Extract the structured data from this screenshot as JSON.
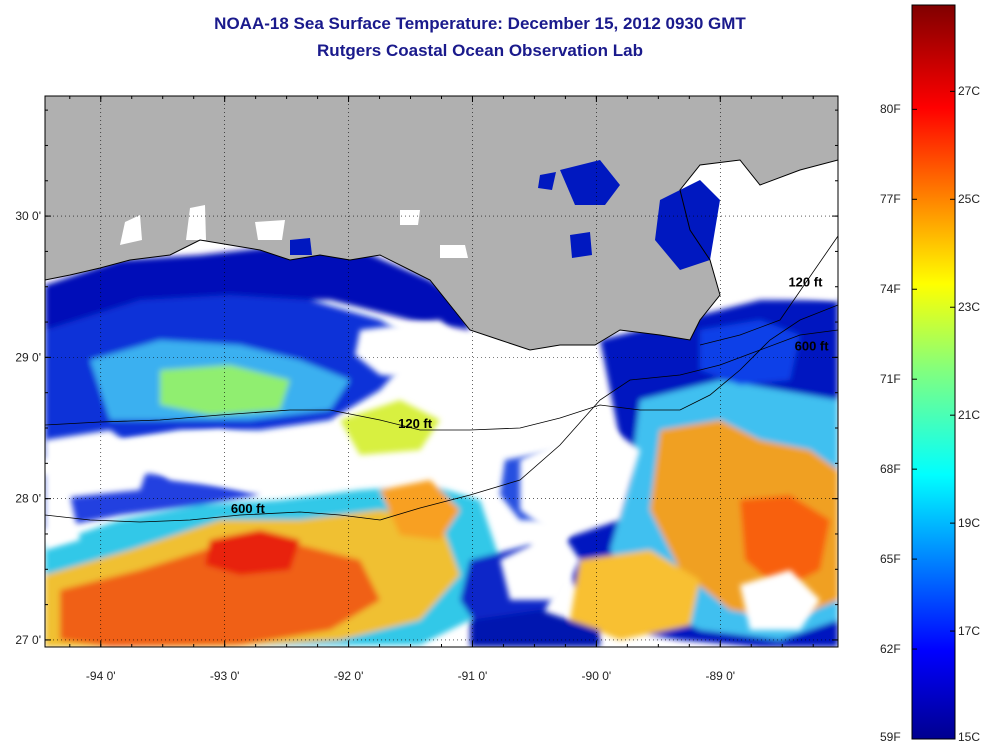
{
  "header": {
    "title": "NOAA-18 Sea Surface Temperature:  December 15, 2012 0930 GMT",
    "subtitle": "Rutgers Coastal Ocean Observation Lab"
  },
  "map": {
    "lon_range": [
      -94.45,
      -88.05
    ],
    "lat_range": [
      26.95,
      30.85
    ],
    "lon_ticks": [
      {
        "value": -94,
        "label": "-94 0'"
      },
      {
        "value": -93,
        "label": "-93 0'"
      },
      {
        "value": -92,
        "label": "-92 0'"
      },
      {
        "value": -91,
        "label": "-91 0'"
      },
      {
        "value": -90,
        "label": "-90 0'"
      },
      {
        "value": -89,
        "label": "-89 0'"
      }
    ],
    "lat_ticks": [
      {
        "value": 27,
        "label": "27 0'"
      },
      {
        "value": 28,
        "label": "28 0'"
      },
      {
        "value": 29,
        "label": "29 0'"
      },
      {
        "value": 30,
        "label": "30 0'"
      }
    ],
    "land_color": "#b0b0b0",
    "cloud_color": "#ffffff",
    "isobath_labels": [
      {
        "text": "600 ft",
        "lon": -92.95,
        "lat": 27.9
      },
      {
        "text": "120 ft",
        "lon": -91.6,
        "lat": 28.5
      },
      {
        "text": "120 ft",
        "lon": -88.45,
        "lat": 29.5
      },
      {
        "text": "600 ft",
        "lon": -88.4,
        "lat": 29.05
      }
    ]
  },
  "colorbar": {
    "range_c": [
      15,
      28.6
    ],
    "fahrenheit_labels": [
      "80F",
      "77F",
      "74F",
      "71F",
      "68F",
      "65F",
      "62F",
      "59F"
    ],
    "celsius_labels": [
      "27C",
      "25C",
      "23C",
      "21C",
      "19C",
      "17C",
      "15C"
    ],
    "fahrenheit_values": [
      80,
      77,
      74,
      71,
      68,
      65,
      62,
      59
    ],
    "celsius_values": [
      27,
      25,
      23,
      21,
      19,
      17,
      15
    ]
  }
}
